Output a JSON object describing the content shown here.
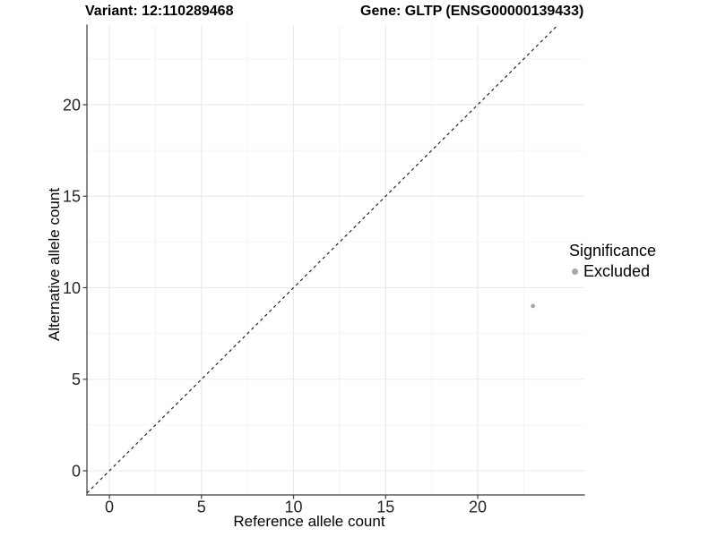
{
  "chart_data": {
    "type": "scatter",
    "titles": {
      "variant": "Variant: 12:110289468",
      "gene": "Gene: GLTP (ENSG00000139433)"
    },
    "xlabel": "Reference allele count",
    "ylabel": "Alternative allele count",
    "x_ticks": [
      0,
      5,
      10,
      15,
      20
    ],
    "y_ticks": [
      0,
      5,
      10,
      15,
      20
    ],
    "x_minor_ticks": [
      2.5,
      7.5,
      12.5,
      17.5,
      22.5
    ],
    "y_minor_ticks": [
      2.5,
      7.5,
      12.5,
      17.5,
      22.5
    ],
    "xlim": [
      -1.22,
      25.79
    ],
    "ylim": [
      -1.32,
      24.35
    ],
    "grid": "major+minor",
    "points": [
      {
        "x": 23,
        "y": 9,
        "significance": "Excluded"
      }
    ],
    "identity_line": {
      "slope": 1,
      "intercept": 0,
      "style": "dashed"
    },
    "legend": {
      "title": "Significance",
      "position": "right",
      "items": [
        {
          "label": "Excluded",
          "color": "#a8a8a8"
        }
      ]
    }
  },
  "colors": {
    "point": "#a8a8a8",
    "reference_line": "#111111",
    "axis_line": "#3c3c3c",
    "tick_mark": "#3c3c3c",
    "tick_label": "#262626",
    "grid_major": "#e9e9e9",
    "grid_minor": "#f4f4f4",
    "background": "#ffffff"
  }
}
